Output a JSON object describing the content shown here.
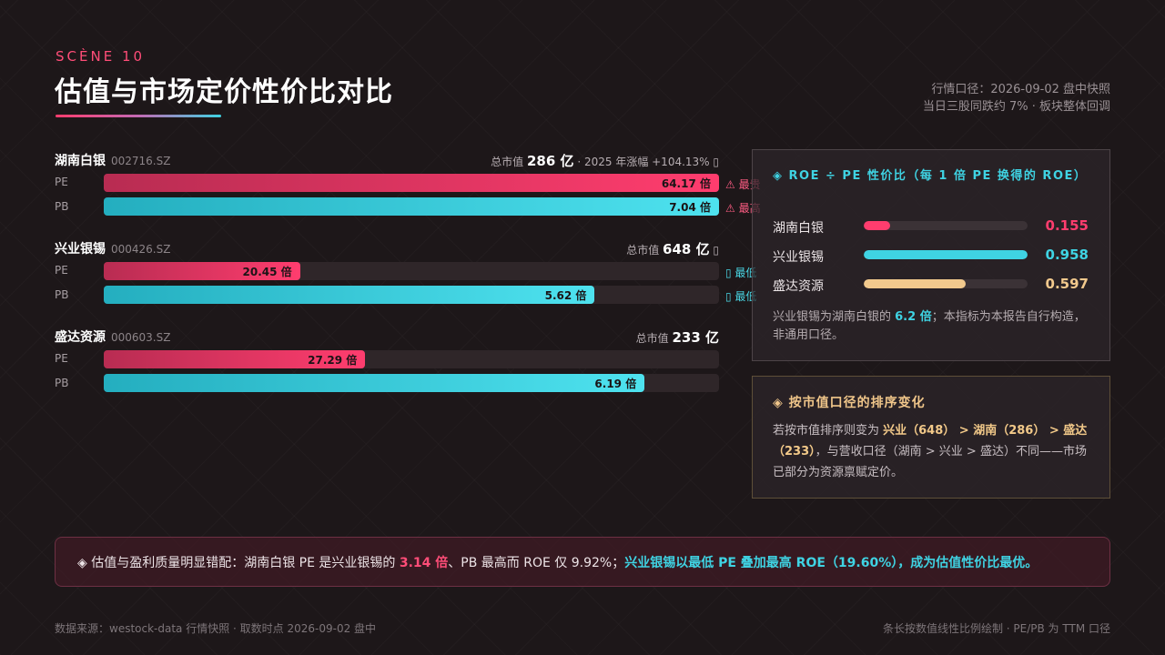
{
  "header": {
    "scene": "SCÈNE 10",
    "title": "估值与市场定价性价比对比",
    "meta_line1": "行情口径：2026-09-02 盘中快照",
    "meta_line2": "当日三股同跌约 7% · 板块整体回调"
  },
  "companies": [
    {
      "name": "湖南白银",
      "code": "002716.SZ",
      "cap_prefix": "总市值",
      "cap_value": "286 亿",
      "cap_suffix": " · 2025 年涨幅 +104.13% ▯",
      "pe": {
        "label": "PE",
        "value": "64.17 倍",
        "ratio": 1.0,
        "flag": "⚠ 最贵"
      },
      "pb": {
        "label": "PB",
        "value": "7.04 倍",
        "ratio": 1.0,
        "flag": "⚠ 最高"
      }
    },
    {
      "name": "兴业银锡",
      "code": "000426.SZ",
      "cap_prefix": "总市值",
      "cap_value": "648 亿",
      "cap_suffix": " ▯",
      "pe": {
        "label": "PE",
        "value": "20.45 倍",
        "ratio": 0.319,
        "flag": "▯ 最低"
      },
      "pb": {
        "label": "PB",
        "value": "5.62 倍",
        "ratio": 0.798,
        "flag": "▯ 最低"
      }
    },
    {
      "name": "盛达资源",
      "code": "000603.SZ",
      "cap_prefix": "总市值",
      "cap_value": "233 亿",
      "cap_suffix": "",
      "pe": {
        "label": "PE",
        "value": "27.29 倍",
        "ratio": 0.425,
        "flag": ""
      },
      "pb": {
        "label": "PB",
        "value": "6.19 倍",
        "ratio": 0.879,
        "flag": ""
      }
    }
  ],
  "roe_panel": {
    "icon": "◈",
    "title": "ROE ÷ PE 性价比（每 1 倍 PE 换得的 ROE）",
    "rows": [
      {
        "name": "湖南白银",
        "value": "0.155",
        "ratio": 0.162,
        "color": "#ff3d6e"
      },
      {
        "name": "兴业银锡",
        "value": "0.958",
        "ratio": 1.0,
        "color": "#3fd3e3"
      },
      {
        "name": "盛达资源",
        "value": "0.597",
        "ratio": 0.623,
        "color": "#f2c98d"
      }
    ],
    "note_prefix": "兴业银锡为湖南白银的 ",
    "note_highlight": "6.2 倍",
    "note_suffix": "；本指标为本报告自行构造，非通用口径。"
  },
  "rank_panel": {
    "icon": "◈",
    "title": "按市值口径的排序变化",
    "body_prefix": "若按市值排序则变为 ",
    "body_highlight": "兴业（648） > 湖南（286） > 盛达（233）",
    "body_suffix": "，与营收口径（湖南 > 兴业 > 盛达）不同——市场已部分为资源禀赋定价。"
  },
  "summary": {
    "icon": "◈",
    "part1": " 估值与盈利质量明显错配：湖南白银 PE 是兴业银锡的 ",
    "highlight1": "3.14 倍",
    "part2": "、PB 最高而 ROE 仅 9.92%；",
    "highlight2": "兴业银锡以最低 PE 叠加最高 ROE（19.60%），成为估值性价比最优。"
  },
  "footer": {
    "left": "数据来源：westock-data 行情快照 · 取数时点 2026-09-02 盘中",
    "right": "条长按数值线性比例绘制 · PE/PB 为 TTM 口径"
  }
}
